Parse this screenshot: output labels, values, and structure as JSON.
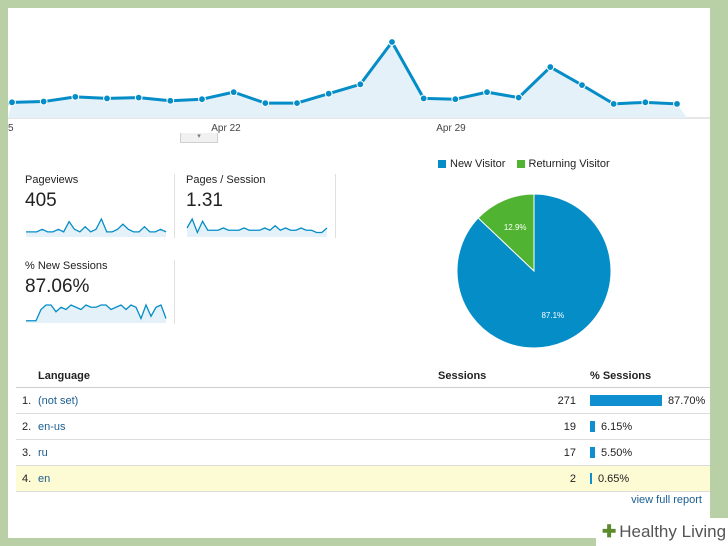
{
  "main_chart": {
    "x_labels": [
      "5",
      "Apr 22",
      "Apr 29"
    ],
    "values": [
      20,
      21,
      27,
      25,
      26,
      22,
      24,
      33,
      19,
      19,
      31,
      43,
      97,
      25,
      24,
      33,
      26,
      65,
      42,
      18,
      20,
      18
    ]
  },
  "collapse": {
    "icon": "chevron-down-icon",
    "glyph": "▾"
  },
  "scorecards": [
    {
      "label": "Pageviews",
      "value": "405",
      "spark": [
        2,
        2,
        2,
        3,
        2,
        2,
        3,
        2,
        6,
        3,
        2,
        4,
        2,
        3,
        7,
        2,
        2,
        3,
        5,
        3,
        2,
        2,
        4,
        2,
        2,
        3,
        2
      ]
    },
    {
      "label": "Pages / Session",
      "value": "1.31",
      "spark": [
        4,
        8,
        2,
        7,
        3,
        3,
        3,
        4,
        3,
        3,
        3,
        4,
        3,
        3,
        3,
        4,
        3,
        5,
        3,
        4,
        3,
        3,
        4,
        3,
        3,
        2,
        2,
        4
      ]
    },
    {
      "label": "% New Sessions",
      "value": "87.06%",
      "spark": [
        1,
        1,
        1,
        6,
        8,
        8,
        5,
        7,
        6,
        8,
        7,
        6,
        8,
        7,
        7,
        8,
        8,
        6,
        7,
        8,
        6,
        8,
        7,
        2,
        8,
        3,
        7,
        8,
        2
      ]
    }
  ],
  "legend": [
    {
      "label": "New Visitor",
      "color": "#058dc7"
    },
    {
      "label": "Returning Visitor",
      "color": "#50b432"
    }
  ],
  "chart_data": {
    "type": "pie",
    "slices": [
      {
        "label": "New Visitor",
        "value": 87.1,
        "display": "87.1%",
        "color": "#058dc7"
      },
      {
        "label": "Returning Visitor",
        "value": 12.9,
        "display": "12.9%",
        "color": "#50b432"
      }
    ]
  },
  "table": {
    "headers": {
      "language": "Language",
      "sessions": "Sessions",
      "pct_sessions": "% Sessions"
    },
    "rows": [
      {
        "num": "1.",
        "language": "(not set)",
        "sessions": "271",
        "pct": "87.70%",
        "share": 87.7
      },
      {
        "num": "2.",
        "language": "en-us",
        "sessions": "19",
        "pct": "6.15%",
        "share": 6.15
      },
      {
        "num": "3.",
        "language": "ru",
        "sessions": "17",
        "pct": "5.50%",
        "share": 5.5
      },
      {
        "num": "4.",
        "language": "en",
        "sessions": "2",
        "pct": "0.65%",
        "share": 0.65
      }
    ]
  },
  "view_full_report": "view full report",
  "watermark": {
    "prefix": "Healthy",
    "suffix": "Living"
  }
}
